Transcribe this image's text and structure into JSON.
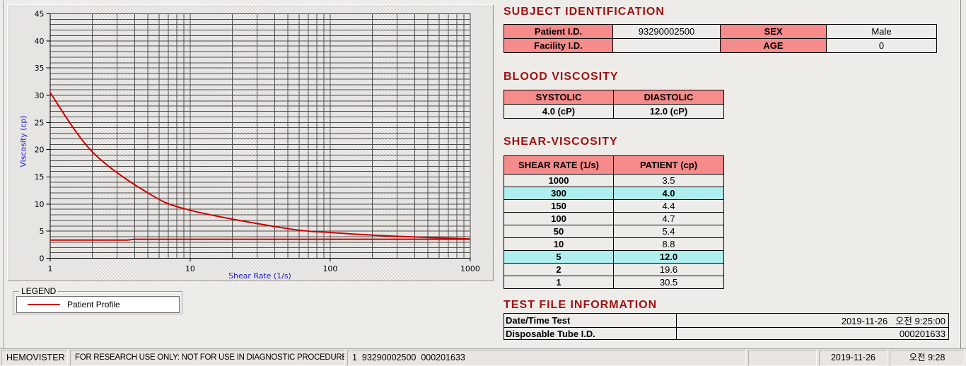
{
  "colors": {
    "form-bg": "#edece9",
    "accent": "#9e1111",
    "salmon": "#f58b8b",
    "highlight-cyan": "#aeeeee",
    "status-bg": "#e9e6e2"
  },
  "chart_data": {
    "type": "line",
    "title": "",
    "xlabel": "Shear Rate (1/s)",
    "ylabel": "Viscosity (cp)",
    "x_scale": "log",
    "xlim": [
      1,
      1000
    ],
    "ylim": [
      0,
      45
    ],
    "x_major_ticks": [
      1,
      10,
      100,
      1000
    ],
    "y_major_step": 5,
    "y_minor_step": 1,
    "grid": true,
    "colors": {
      "line": "#cc0000",
      "grid": "#4c4c4c",
      "axis": "#000000",
      "labels": "#2020c8",
      "dither": "#cfcbc5"
    },
    "legend": {
      "title": "LEGEND",
      "entries": [
        {
          "label": "Patient Profile",
          "color": "#cc0000"
        }
      ]
    },
    "series": [
      {
        "name": "Patient Profile",
        "color": "#cc0000",
        "smooth": true,
        "points": [
          [
            1,
            30.5
          ],
          [
            2,
            19.6
          ],
          [
            5,
            12.0
          ],
          [
            10,
            8.8
          ],
          [
            50,
            5.4
          ],
          [
            100,
            4.7
          ],
          [
            150,
            4.4
          ],
          [
            300,
            4.0
          ],
          [
            1000,
            3.5
          ]
        ]
      },
      {
        "name": "baseline",
        "color": "#cc0000",
        "smooth": false,
        "points": [
          [
            1,
            3.3
          ],
          [
            3.6,
            3.3
          ],
          [
            4,
            3.45
          ],
          [
            1000,
            3.45
          ]
        ]
      }
    ]
  },
  "subject": {
    "title": "SUBJECT IDENTIFICATION",
    "rows": [
      {
        "label1": "Patient I.D.",
        "value1": "93290002500",
        "label2": "SEX",
        "value2": "Male"
      },
      {
        "label1": "Facility I.D.",
        "value1": "",
        "label2": "AGE",
        "value2": "0"
      }
    ]
  },
  "blood": {
    "title": "BLOOD VISCOSITY",
    "headers": [
      "SYSTOLIC",
      "DIASTOLIC"
    ],
    "values": [
      "4.0 (cP)",
      "12.0 (cP)"
    ]
  },
  "shear": {
    "title": "SHEAR-VISCOSITY",
    "headers": [
      "SHEAR RATE (1/s)",
      "PATIENT (cp)"
    ],
    "rows": [
      {
        "rate": "1000",
        "patient": "3.5",
        "highlight": false
      },
      {
        "rate": "300",
        "patient": "4.0",
        "highlight": true
      },
      {
        "rate": "150",
        "patient": "4.4",
        "highlight": false
      },
      {
        "rate": "100",
        "patient": "4.7",
        "highlight": false
      },
      {
        "rate": "50",
        "patient": "5.4",
        "highlight": false
      },
      {
        "rate": "10",
        "patient": "8.8",
        "highlight": false
      },
      {
        "rate": "5",
        "patient": "12.0",
        "highlight": true
      },
      {
        "rate": "2",
        "patient": "19.6",
        "highlight": false
      },
      {
        "rate": "1",
        "patient": "30.5",
        "highlight": false
      }
    ]
  },
  "testfile": {
    "title": "TEST FILE INFORMATION",
    "rows": [
      {
        "label": "Date/Time Test",
        "value": "2019-11-26   오전 9:25:00"
      },
      {
        "label": "Disposable Tube I.D.",
        "value": "000201633"
      }
    ]
  },
  "statusbar": {
    "panels": [
      "HEMOVISTER",
      "FOR RESEARCH USE ONLY: NOT FOR USE IN DIAGNOSTIC PROCEDURES",
      "1  93290002500  000201633",
      "",
      "2019-11-26",
      "오전 9:28"
    ]
  }
}
